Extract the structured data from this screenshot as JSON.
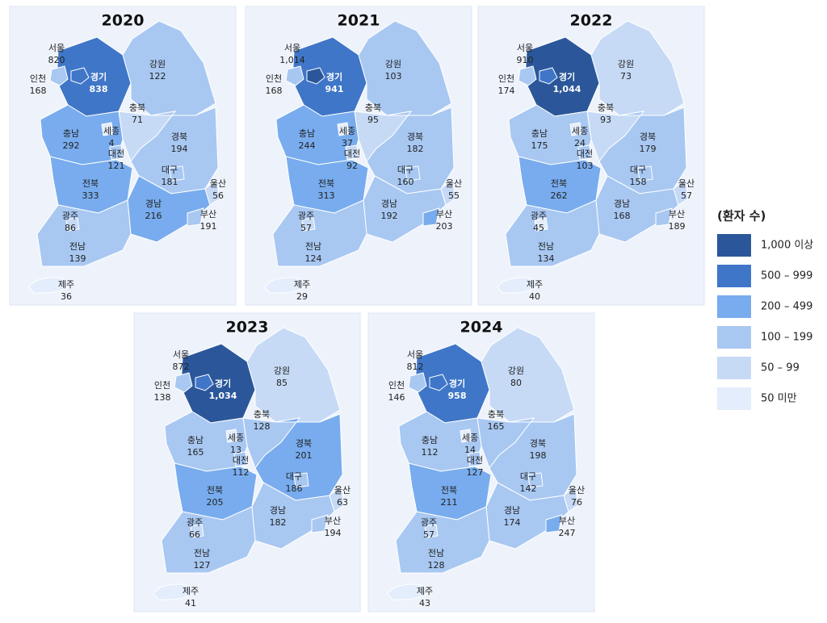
{
  "panels": [
    {
      "year": "2020",
      "regions": [
        {
          "name": "경기",
          "value": "838"
        },
        {
          "name": "강원",
          "value": "122"
        },
        {
          "name": "충북",
          "value": "71"
        },
        {
          "name": "충남",
          "value": "292"
        },
        {
          "name": "경북",
          "value": "194"
        },
        {
          "name": "전북",
          "value": "333"
        },
        {
          "name": "경남",
          "value": "216"
        },
        {
          "name": "전남",
          "value": "139"
        },
        {
          "name": "제주",
          "value": "36"
        },
        {
          "name": "서울",
          "value": "820"
        },
        {
          "name": "인천",
          "value": "168"
        },
        {
          "name": "세종",
          "value": "4"
        },
        {
          "name": "대전",
          "value": "121"
        },
        {
          "name": "대구",
          "value": "181"
        },
        {
          "name": "울산",
          "value": "56"
        },
        {
          "name": "부산",
          "value": "191"
        },
        {
          "name": "광주",
          "value": "86"
        }
      ]
    },
    {
      "year": "2021",
      "regions": [
        {
          "name": "경기",
          "value": "941"
        },
        {
          "name": "강원",
          "value": "103"
        },
        {
          "name": "충북",
          "value": "95"
        },
        {
          "name": "충남",
          "value": "244"
        },
        {
          "name": "경북",
          "value": "182"
        },
        {
          "name": "전북",
          "value": "313"
        },
        {
          "name": "경남",
          "value": "192"
        },
        {
          "name": "전남",
          "value": "124"
        },
        {
          "name": "제주",
          "value": "29"
        },
        {
          "name": "서울",
          "value": "1,014"
        },
        {
          "name": "인천",
          "value": "168"
        },
        {
          "name": "세종",
          "value": "37"
        },
        {
          "name": "대전",
          "value": "92"
        },
        {
          "name": "대구",
          "value": "160"
        },
        {
          "name": "울산",
          "value": "55"
        },
        {
          "name": "부산",
          "value": "203"
        },
        {
          "name": "광주",
          "value": "57"
        }
      ]
    },
    {
      "year": "2022",
      "regions": [
        {
          "name": "경기",
          "value": "1,044"
        },
        {
          "name": "강원",
          "value": "73"
        },
        {
          "name": "충북",
          "value": "93"
        },
        {
          "name": "충남",
          "value": "175"
        },
        {
          "name": "경북",
          "value": "179"
        },
        {
          "name": "전북",
          "value": "262"
        },
        {
          "name": "경남",
          "value": "168"
        },
        {
          "name": "전남",
          "value": "134"
        },
        {
          "name": "제주",
          "value": "40"
        },
        {
          "name": "서울",
          "value": "910"
        },
        {
          "name": "인천",
          "value": "174"
        },
        {
          "name": "세종",
          "value": "24"
        },
        {
          "name": "대전",
          "value": "103"
        },
        {
          "name": "대구",
          "value": "158"
        },
        {
          "name": "울산",
          "value": "57"
        },
        {
          "name": "부산",
          "value": "189"
        },
        {
          "name": "광주",
          "value": "45"
        }
      ]
    },
    {
      "year": "2023",
      "regions": [
        {
          "name": "경기",
          "value": "1,034"
        },
        {
          "name": "강원",
          "value": "85"
        },
        {
          "name": "충북",
          "value": "128"
        },
        {
          "name": "충남",
          "value": "165"
        },
        {
          "name": "경북",
          "value": "201"
        },
        {
          "name": "전북",
          "value": "205"
        },
        {
          "name": "경남",
          "value": "182"
        },
        {
          "name": "전남",
          "value": "127"
        },
        {
          "name": "제주",
          "value": "41"
        },
        {
          "name": "서울",
          "value": "872"
        },
        {
          "name": "인천",
          "value": "138"
        },
        {
          "name": "세종",
          "value": "13"
        },
        {
          "name": "대전",
          "value": "112"
        },
        {
          "name": "대구",
          "value": "186"
        },
        {
          "name": "울산",
          "value": "63"
        },
        {
          "name": "부산",
          "value": "194"
        },
        {
          "name": "광주",
          "value": "66"
        }
      ]
    },
    {
      "year": "2024",
      "regions": [
        {
          "name": "경기",
          "value": "958"
        },
        {
          "name": "강원",
          "value": "80"
        },
        {
          "name": "충북",
          "value": "165"
        },
        {
          "name": "충남",
          "value": "112"
        },
        {
          "name": "경북",
          "value": "198"
        },
        {
          "name": "전북",
          "value": "211"
        },
        {
          "name": "경남",
          "value": "174"
        },
        {
          "name": "전남",
          "value": "128"
        },
        {
          "name": "제주",
          "value": "43"
        },
        {
          "name": "서울",
          "value": "812"
        },
        {
          "name": "인천",
          "value": "146"
        },
        {
          "name": "세종",
          "value": "14"
        },
        {
          "name": "대전",
          "value": "127"
        },
        {
          "name": "대구",
          "value": "142"
        },
        {
          "name": "울산",
          "value": "76"
        },
        {
          "name": "부산",
          "value": "247"
        },
        {
          "name": "광주",
          "value": "57"
        }
      ]
    }
  ],
  "legend": {
    "title": "(환자 수)",
    "items": [
      {
        "label": "1,000 이상",
        "color": "#2b579a"
      },
      {
        "label": "500 – 999",
        "color": "#3f76c8"
      },
      {
        "label": "200 – 499",
        "color": "#78acee"
      },
      {
        "label": "100 – 199",
        "color": "#a8c8f2"
      },
      {
        "label": "50 – 99",
        "color": "#c6daf6"
      },
      {
        "label": "50 미만",
        "color": "#e3edfb"
      }
    ]
  }
}
